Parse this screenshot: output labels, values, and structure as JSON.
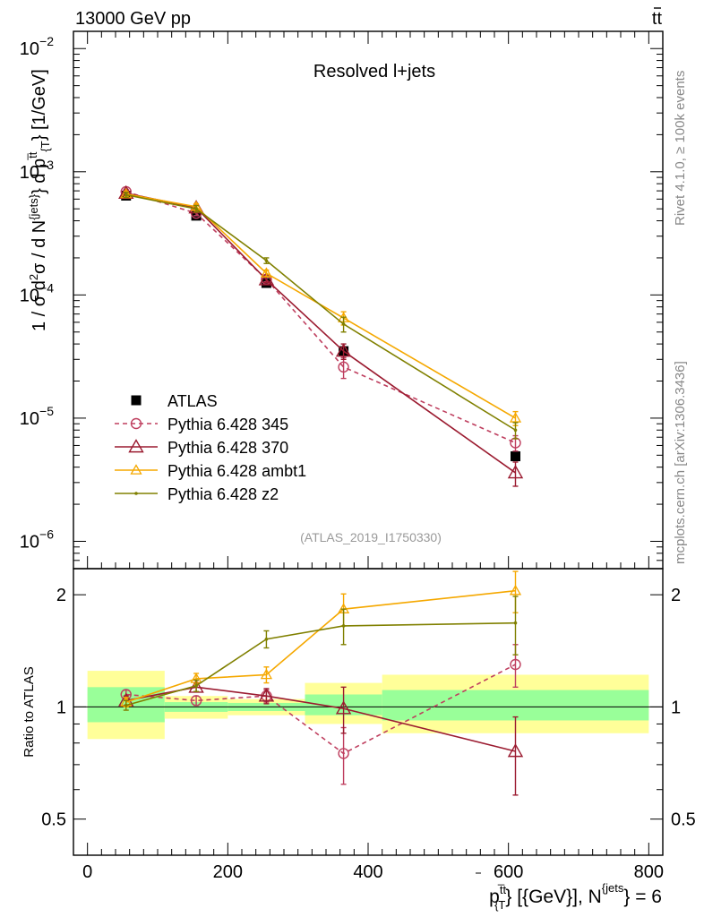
{
  "header": {
    "left": "13000 GeV pp",
    "right": "t",
    "right_bar": "t"
  },
  "side_labels": {
    "rivet": "Rivet 4.1.0, ≥ 100k events",
    "mcplots": "mcplots.cern.ch [arXiv:1306.3436]"
  },
  "main_plot": {
    "title": "Resolved l+jets",
    "watermark": "(ATLAS_2019_I1750330)",
    "ylabel": "1 / σ d²σ / d N^{jets} d p_{T}^{t̅t} [1/GeV]",
    "ylabel_parts": {
      "p1": "1 / σ d",
      "s1": "2",
      "p2": "σ /  d N",
      "s2": "{jets}",
      "p3": "} d p",
      "s3": "t̅t",
      "sub3": "{T",
      "p4": "} [1/GeV]"
    },
    "yscale": "log",
    "ylim": [
      6e-07,
      0.0138
    ],
    "yticks": [
      {
        "value": 1e-06,
        "base": "10",
        "exp": "−6"
      },
      {
        "value": 1e-05,
        "base": "10",
        "exp": "−5"
      },
      {
        "value": 0.0001,
        "base": "10",
        "exp": "−4"
      },
      {
        "value": 0.001,
        "base": "10",
        "exp": "−3"
      },
      {
        "value": 0.01,
        "base": "10",
        "exp": "−2"
      }
    ]
  },
  "ratio_plot": {
    "ylabel": "Ratio to ATLAS",
    "yscale": "log",
    "ylim": [
      0.4,
      2.35
    ],
    "yticks": [
      {
        "value": 0.5,
        "label": "0.5"
      },
      {
        "value": 1,
        "label": "1"
      },
      {
        "value": 2,
        "label": "2"
      }
    ],
    "bands": [
      {
        "xlo": 0,
        "xhi": 110,
        "yellow": [
          0.82,
          1.25
        ],
        "green": [
          0.91,
          1.13
        ]
      },
      {
        "xlo": 110,
        "xhi": 200,
        "yellow": [
          0.93,
          1.07
        ],
        "green": [
          0.97,
          1.03
        ]
      },
      {
        "xlo": 200,
        "xhi": 310,
        "yellow": [
          0.95,
          1.05
        ],
        "green": [
          0.975,
          1.025
        ]
      },
      {
        "xlo": 310,
        "xhi": 420,
        "yellow": [
          0.9,
          1.16
        ],
        "green": [
          0.95,
          1.08
        ]
      },
      {
        "xlo": 420,
        "xhi": 800,
        "yellow": [
          0.85,
          1.22
        ],
        "green": [
          0.92,
          1.11
        ]
      }
    ]
  },
  "xaxis": {
    "xlim": [
      -20,
      820
    ],
    "ticks": [
      0,
      200,
      400,
      600,
      800
    ],
    "tick_labels": [
      "0",
      "200",
      "400",
      "600",
      "800"
    ],
    "label_parts": {
      "p": "p",
      "sup": "t̅t",
      "sub": "{T",
      "rest": "} [{GeV}], N",
      "sup2": "{jets",
      "end": "} = 6"
    }
  },
  "chart_data": {
    "type": "line",
    "x": [
      55,
      155,
      255,
      365,
      610
    ],
    "series": [
      {
        "name": "ATLAS",
        "color": "#000000",
        "marker": "square-filled",
        "values": [
          0.00064,
          0.00044,
          0.000125,
          3.5e-05,
          4.9e-06
        ],
        "ratio": [
          1,
          1,
          1,
          1,
          1
        ]
      },
      {
        "name": "Pythia 6.428 345",
        "color": "#bf3f5f",
        "marker": "circle-open",
        "dashed": true,
        "values": [
          0.00069,
          0.00046,
          0.000134,
          2.6e-05,
          6.3e-06
        ],
        "errors": [
          3e-05,
          2e-05,
          6e-06,
          5e-06,
          9e-07
        ],
        "ratio": [
          1.08,
          1.04,
          1.07,
          0.75,
          1.3
        ],
        "ratio_err": [
          0.03,
          0.03,
          0.04,
          0.13,
          0.17
        ]
      },
      {
        "name": "Pythia 6.428 370",
        "color": "#9b1b30",
        "marker": "triangle-open",
        "values": [
          0.00067,
          0.00051,
          0.000133,
          3.5e-05,
          3.6e-06
        ],
        "errors": [
          3e-05,
          3e-05,
          7e-06,
          5e-06,
          8e-07
        ],
        "ratio": [
          1.04,
          1.13,
          1.07,
          0.99,
          0.76
        ],
        "ratio_err": [
          0.03,
          0.03,
          0.05,
          0.14,
          0.18
        ]
      },
      {
        "name": "Pythia 6.428 ambt1",
        "color": "#f5a800",
        "marker": "triangle-small",
        "values": [
          0.00066,
          0.00052,
          0.00015,
          6.5e-05,
          1e-05
        ],
        "errors": [
          3e-05,
          3e-05,
          9e-06,
          8e-06,
          1.3e-06
        ],
        "ratio": [
          1.03,
          1.19,
          1.22,
          1.83,
          2.05
        ],
        "ratio_err": [
          0.03,
          0.04,
          0.06,
          0.18,
          0.26
        ]
      },
      {
        "name": "Pythia 6.428 z2",
        "color": "#808000",
        "marker": "dot",
        "values": [
          0.00065,
          0.0005,
          0.00019,
          5.8e-05,
          8e-06
        ],
        "errors": [
          3e-05,
          3e-05,
          1e-05,
          8e-06,
          1.2e-06
        ],
        "ratio": [
          1.01,
          1.14,
          1.52,
          1.65,
          1.68
        ],
        "ratio_err": [
          0.03,
          0.04,
          0.08,
          0.18,
          0.3
        ]
      }
    ]
  }
}
